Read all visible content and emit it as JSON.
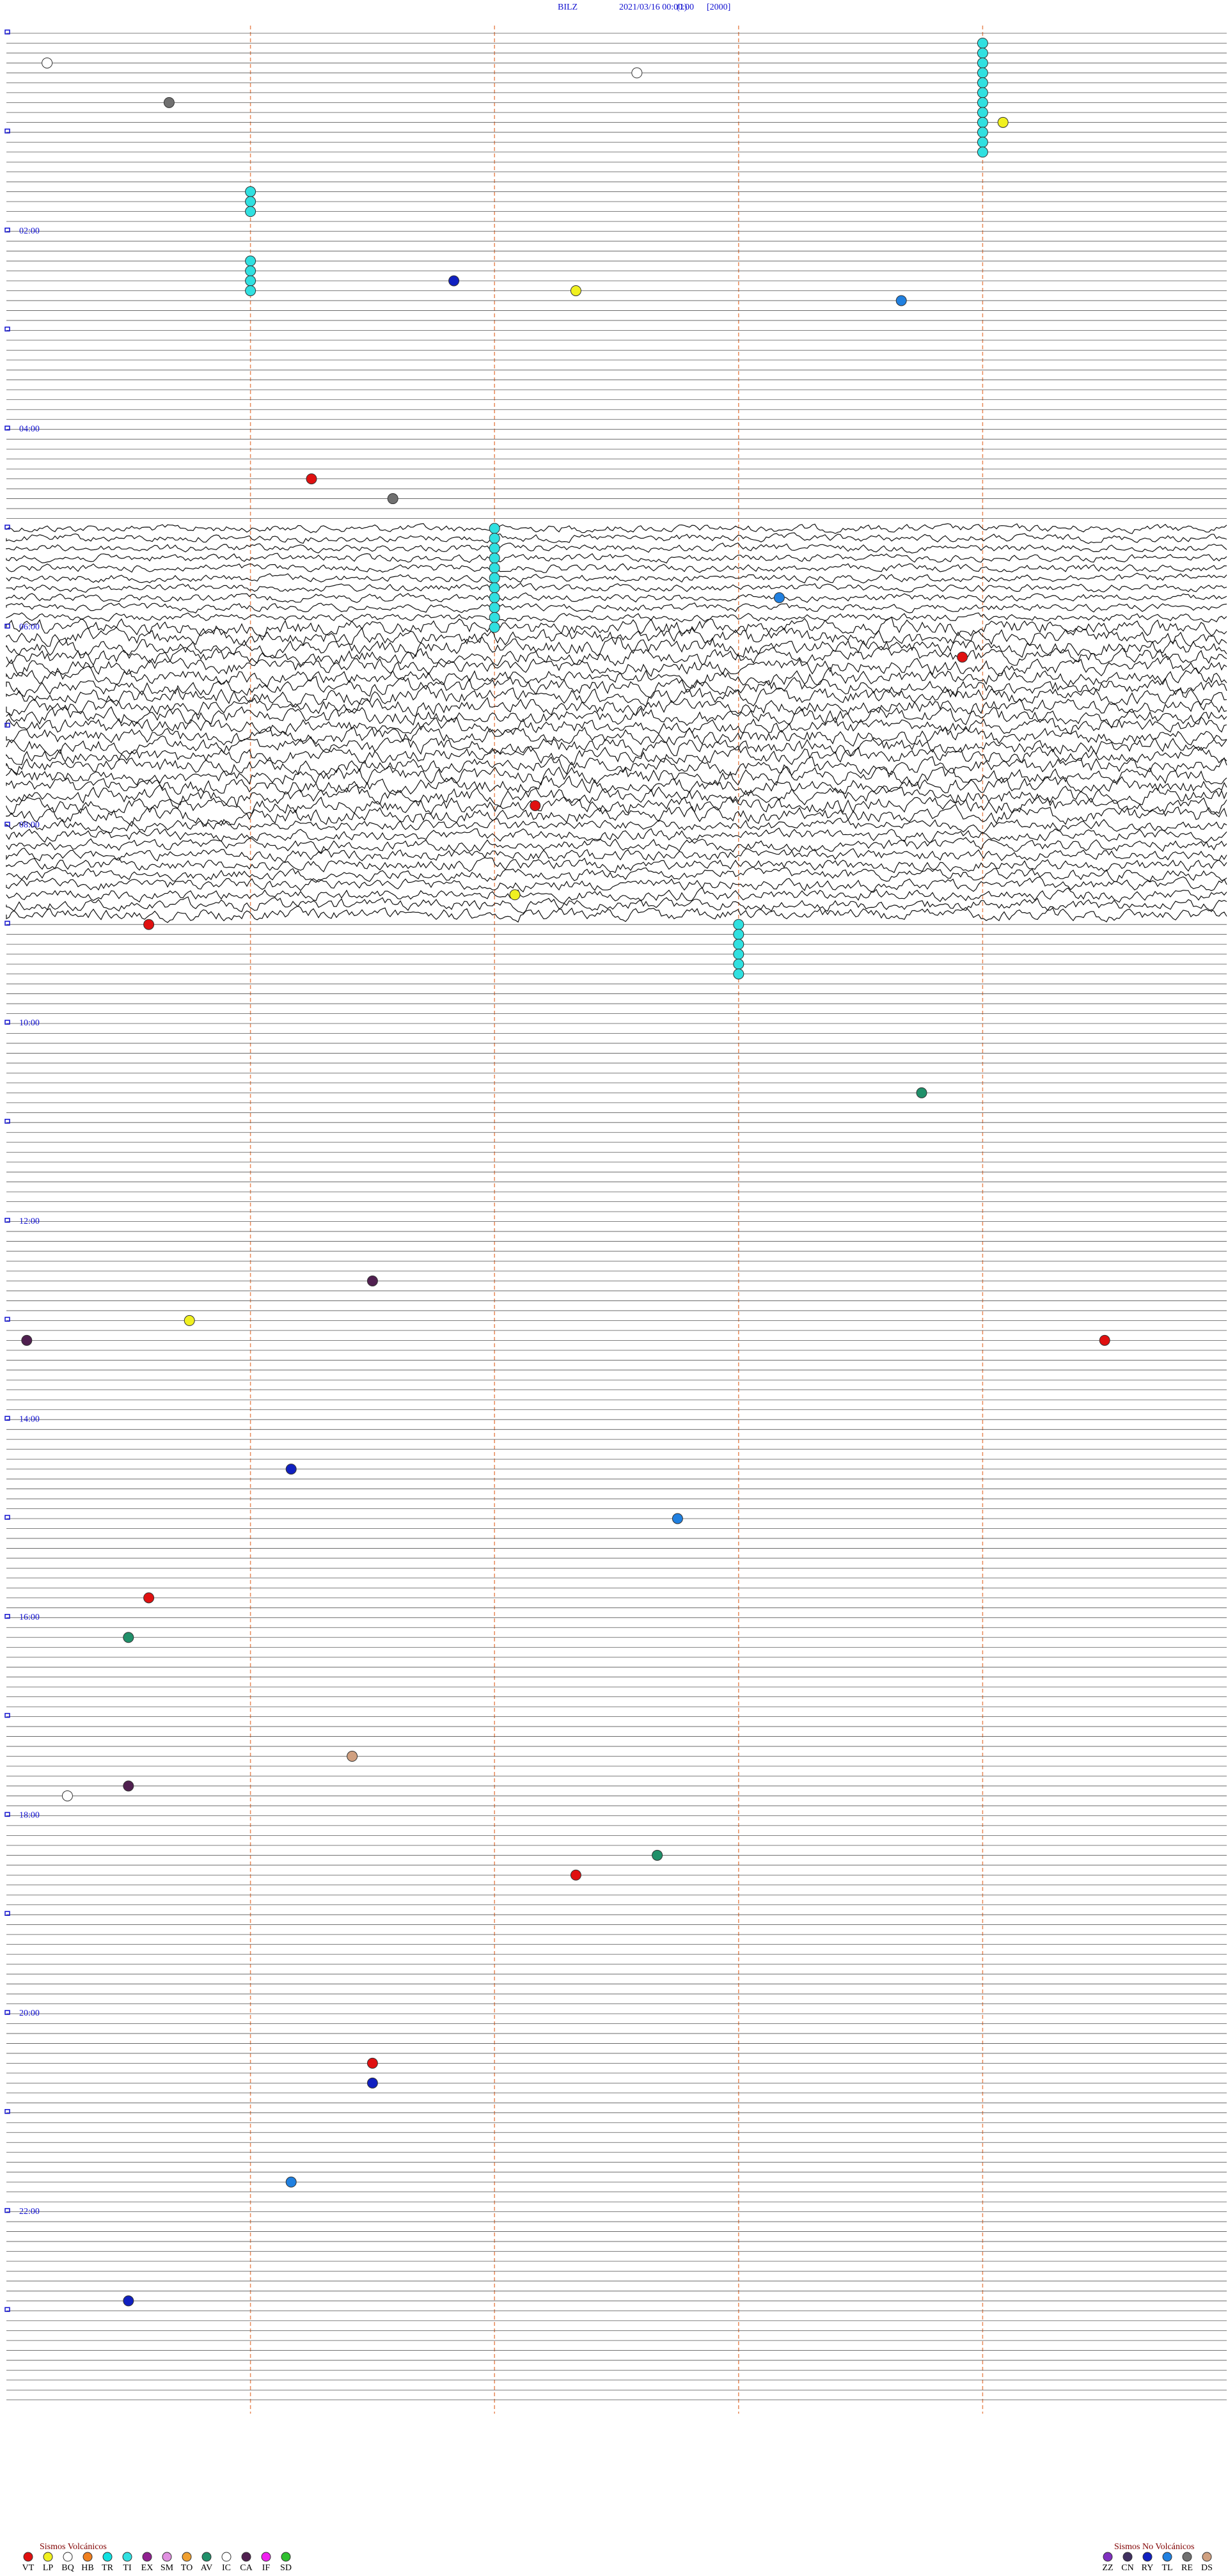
{
  "chart_data": {
    "type": "helicorder",
    "title": {
      "station": "BILZ",
      "datetime": "2021/03/16 00:00:00",
      "channel": "(1)",
      "scale": "[2000]"
    },
    "hour_labels": [
      "02:00",
      "04:00",
      "06:00",
      "08:00",
      "10:00",
      "12:00",
      "14:00",
      "16:00",
      "18:00",
      "20:00",
      "22:00"
    ],
    "hourly_amplitude": [
      1,
      1,
      1,
      1,
      1,
      4,
      8,
      8,
      6,
      1,
      1,
      1,
      1,
      1,
      1,
      1,
      1,
      1,
      1,
      1,
      1,
      1,
      1,
      1
    ],
    "events": [
      {
        "time": 10.8,
        "type": "TI"
      },
      {
        "time": 16.8,
        "type": "TI"
      },
      {
        "time": 22.8,
        "type": "TI"
      },
      {
        "time": 28.8,
        "type": "TI"
      },
      {
        "time": 34.8,
        "type": "TI"
      },
      {
        "time": 40.8,
        "type": "TI"
      },
      {
        "time": 46.8,
        "type": "TI"
      },
      {
        "time": 52.8,
        "type": "TI"
      },
      {
        "time": 58.8,
        "type": "TI"
      },
      {
        "time": 64.8,
        "type": "TI"
      },
      {
        "time": 70.8,
        "type": "TI"
      },
      {
        "time": 76.8,
        "type": "TI"
      },
      {
        "time": 97.2,
        "type": "TI"
      },
      {
        "time": 103.2,
        "type": "TI"
      },
      {
        "time": 109.2,
        "type": "TI"
      },
      {
        "time": 139.2,
        "type": "TI"
      },
      {
        "time": 145.2,
        "type": "TI"
      },
      {
        "time": 151.2,
        "type": "TI"
      },
      {
        "time": 157.2,
        "type": "TI"
      },
      {
        "time": 302.4,
        "type": "TI"
      },
      {
        "time": 308.4,
        "type": "TI"
      },
      {
        "time": 314.4,
        "type": "TI"
      },
      {
        "time": 320.4,
        "type": "TI"
      },
      {
        "time": 326.4,
        "type": "TI"
      },
      {
        "time": 332.4,
        "type": "TI"
      },
      {
        "time": 338.4,
        "type": "TI"
      },
      {
        "time": 344.4,
        "type": "TI"
      },
      {
        "time": 350.4,
        "type": "TI"
      },
      {
        "time": 356.4,
        "type": "TI"
      },
      {
        "time": 362.4,
        "type": "TI"
      },
      {
        "time": 543.6,
        "type": "TI"
      },
      {
        "time": 549.6,
        "type": "TI"
      },
      {
        "time": 555.6,
        "type": "TI"
      },
      {
        "time": 561.6,
        "type": "TI"
      },
      {
        "time": 567.6,
        "type": "TI"
      },
      {
        "time": 573.6,
        "type": "TI"
      },
      {
        "time": 18.2,
        "type": "IC"
      },
      {
        "time": 42.8,
        "type": "RE"
      },
      {
        "time": 27.1,
        "type": "IC"
      },
      {
        "time": 58.9,
        "type": "LP"
      },
      {
        "time": 271.5,
        "type": "VT"
      },
      {
        "time": 152.2,
        "type": "RY"
      },
      {
        "time": 158.8,
        "type": "LP"
      },
      {
        "time": 166.4,
        "type": "TL"
      },
      {
        "time": 283.9,
        "type": "RE"
      },
      {
        "time": 345.8,
        "type": "TL"
      },
      {
        "time": 382.7,
        "type": "VT"
      },
      {
        "time": 470.6,
        "type": "VT"
      },
      {
        "time": 540.7,
        "type": "VT"
      },
      {
        "time": 524.5,
        "type": "LP"
      },
      {
        "time": 646.5,
        "type": "AV"
      },
      {
        "time": 757.8,
        "type": "CA"
      },
      {
        "time": 792.1,
        "type": "CA"
      },
      {
        "time": 797.4,
        "type": "VT"
      },
      {
        "time": 780.9,
        "type": "LP"
      },
      {
        "time": 871.4,
        "type": "RY"
      },
      {
        "time": 903.3,
        "type": "TL"
      },
      {
        "time": 948.7,
        "type": "VT"
      },
      {
        "time": 972.6,
        "type": "AV"
      },
      {
        "time": 1045.7,
        "type": "DS"
      },
      {
        "time": 1118.8,
        "type": "VT"
      },
      {
        "time": 1107.2,
        "type": "AV"
      },
      {
        "time": 1231.8,
        "type": "VT"
      },
      {
        "time": 1243.8,
        "type": "RY"
      },
      {
        "time": 1303.4,
        "type": "TL"
      },
      {
        "time": 1374.6,
        "type": "RY"
      },
      {
        "time": 1062.6,
        "type": "CA"
      },
      {
        "time": 1068.3,
        "type": "IC"
      }
    ],
    "legend": {
      "volcanic_title": "Sismos Volcánicos",
      "volcanic": [
        {
          "code": "VT",
          "color": "#e01010"
        },
        {
          "code": "LP",
          "color": "#f0f020"
        },
        {
          "code": "BQ",
          "color": "#ffffff"
        },
        {
          "code": "HB",
          "color": "#f08020"
        },
        {
          "code": "TR",
          "color": "#10e0e0"
        },
        {
          "code": "TI",
          "color": "#30e0e0"
        },
        {
          "code": "EX",
          "color": "#902090"
        },
        {
          "code": "SM",
          "color": "#e090e0"
        },
        {
          "code": "TO",
          "color": "#f0a030"
        },
        {
          "code": "AV",
          "color": "#20906a"
        },
        {
          "code": "IC",
          "color": "#ffffff"
        },
        {
          "code": "CA",
          "color": "#502050"
        },
        {
          "code": "IF",
          "color": "#f020f0"
        },
        {
          "code": "SD",
          "color": "#30c030"
        }
      ],
      "non_volcanic_title": "Sismos No Volcánicos",
      "non_volcanic": [
        {
          "code": "ZZ",
          "color": "#8030c0"
        },
        {
          "code": "CN",
          "color": "#403060"
        },
        {
          "code": "RY",
          "color": "#1020c0"
        },
        {
          "code": "TL",
          "color": "#2080e0"
        },
        {
          "code": "RE",
          "color": "#707070"
        },
        {
          "code": "DS",
          "color": "#d0a080"
        }
      ]
    }
  }
}
